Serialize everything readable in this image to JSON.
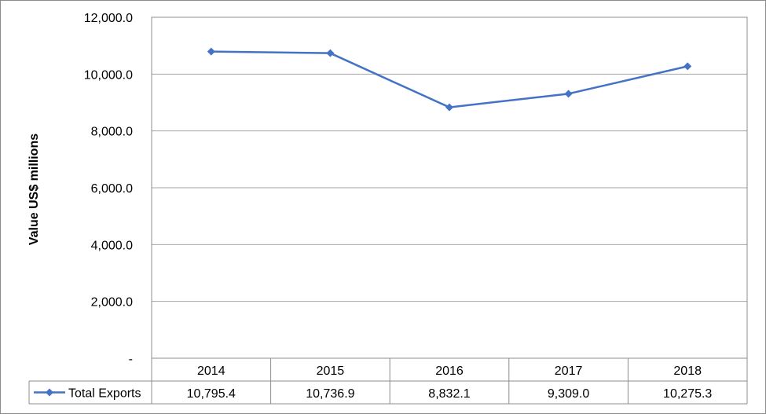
{
  "chart_data": {
    "type": "line",
    "title": "",
    "xlabel": "",
    "ylabel": "Value US$ millions",
    "categories": [
      "2014",
      "2015",
      "2016",
      "2017",
      "2018"
    ],
    "series": [
      {
        "name": "Total Exports",
        "values": [
          10795.4,
          10736.9,
          8832.1,
          9309.0,
          10275.3
        ],
        "color": "#4472c4"
      }
    ],
    "data_table": {
      "row_label": "Total Exports",
      "values": [
        "10,795.4",
        "10,736.9",
        "8,832.1",
        "9,309.0",
        "10,275.3"
      ]
    },
    "ylim": [
      0,
      12000
    ],
    "yticks": [
      0,
      2000,
      4000,
      6000,
      8000,
      10000,
      12000
    ],
    "ytick_labels": [
      "-",
      "2,000.0",
      "4,000.0",
      "6,000.0",
      "8,000.0",
      "10,000.0",
      "12,000.0"
    ],
    "grid": true,
    "legend": "data-table",
    "marker": "diamond"
  }
}
